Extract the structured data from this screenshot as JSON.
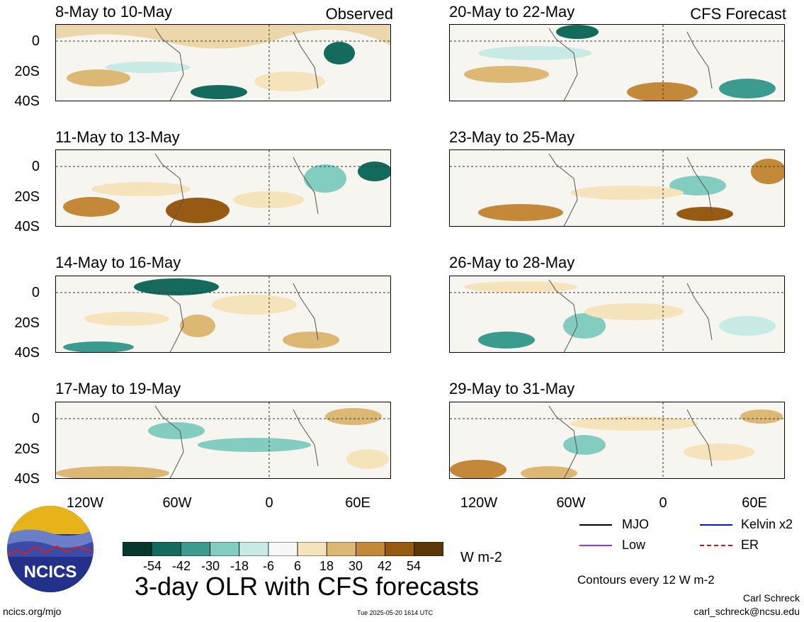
{
  "labels": {
    "observed": "Observed",
    "forecast": "CFS Forecast",
    "y_ticks": [
      "0",
      "20S",
      "40S"
    ],
    "x_ticks": [
      "120W",
      "60W",
      "0",
      "60E"
    ]
  },
  "panels": [
    {
      "title": "8-May to 10-May"
    },
    {
      "title": "11-May to 13-May"
    },
    {
      "title": "14-May to 16-May"
    },
    {
      "title": "17-May to 19-May"
    },
    {
      "title": "20-May to 22-May"
    },
    {
      "title": "23-May to 25-May"
    },
    {
      "title": "26-May to 28-May"
    },
    {
      "title": "29-May to 31-May"
    }
  ],
  "colorbar": {
    "labels": [
      "-54",
      "-42",
      "-30",
      "-18",
      "-6",
      "6",
      "18",
      "30",
      "42",
      "54"
    ],
    "colors": [
      "#05392d",
      "#136a5d",
      "#3b9b8f",
      "#82ccc0",
      "#c7ebe4",
      "#f7f7f7",
      "#f5e3bb",
      "#dcb874",
      "#c38838",
      "#965a12",
      "#5b3608"
    ],
    "units": "W m-2"
  },
  "legend": {
    "mjo": "MJO",
    "kelvin": "Kelvin x2",
    "low": "Low",
    "er": "ER",
    "contours": "Contours every 12 W m-2",
    "colors": {
      "mjo": "#000000",
      "kelvin": "#1010e0",
      "low": "#9a30e8",
      "er": "#e01010"
    }
  },
  "footer": {
    "main_title": "3-day OLR with CFS forecasts",
    "logo_text": "NCICS",
    "url": "ncics.org/mjo",
    "timestamp": "Tue 2025-05-20 1614 UTC",
    "author": "Carl Schreck",
    "email": "carl_schreck@ncsu.edu"
  }
}
